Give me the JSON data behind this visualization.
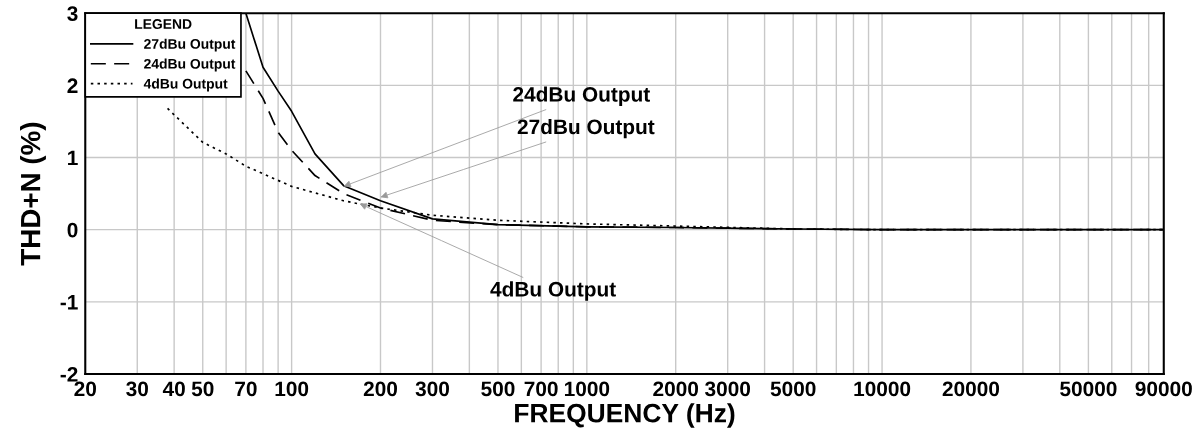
{
  "chart_data": {
    "type": "line",
    "xlabel": "FREQUENCY (Hz)",
    "ylabel": "THD+N (%)",
    "legend_title": "LEGEND",
    "log": "x",
    "grid": true,
    "legend": "top left",
    "marker": "none",
    "xlim": [
      20,
      90000
    ],
    "ylim": [
      -2,
      3
    ],
    "yticks": [
      -2,
      -1,
      0,
      1,
      2,
      3
    ],
    "xticks": [
      20,
      30,
      40,
      50,
      {
        "value": 60,
        "label": null
      },
      70,
      {
        "value": 80,
        "label": null
      },
      {
        "value": 90,
        "label": null
      },
      100,
      200,
      300,
      {
        "value": 400,
        "label": null
      },
      500,
      {
        "value": 600,
        "label": null
      },
      700,
      {
        "value": 800,
        "label": null
      },
      {
        "value": 900,
        "label": null
      },
      1000,
      2000,
      3000,
      {
        "value": 4000,
        "label": null
      },
      5000,
      {
        "value": 6000,
        "label": null
      },
      {
        "value": 7000,
        "label": null
      },
      {
        "value": 8000,
        "label": null
      },
      {
        "value": 9000,
        "label": null
      },
      10000,
      20000,
      {
        "value": 30000,
        "label": null
      },
      {
        "value": 40000,
        "label": null
      },
      50000,
      {
        "value": 60000,
        "label": null
      },
      {
        "value": 70000,
        "label": null
      },
      {
        "value": 80000,
        "label": null
      },
      90000
    ],
    "series": [
      {
        "name": "27dBu Output",
        "color": "#000000",
        "line_style": "solid",
        "x": [
          70,
          80,
          90,
          100,
          120,
          150,
          200,
          300,
          500,
          1000,
          2000,
          5000,
          10000,
          90000
        ],
        "values": [
          3.0,
          2.25,
          1.92,
          1.64,
          1.05,
          0.61,
          0.4,
          0.15,
          0.07,
          0.04,
          0.03,
          0.01,
          0.0,
          0.0
        ]
      },
      {
        "name": "24dBu Output",
        "color": "#000000",
        "line_style": "dashed",
        "x": [
          70,
          80,
          90,
          100,
          120,
          150,
          200,
          300,
          500,
          1000,
          2000,
          5000,
          10000,
          90000
        ],
        "values": [
          2.2,
          1.82,
          1.35,
          1.1,
          0.75,
          0.5,
          0.3,
          0.13,
          0.07,
          0.04,
          0.03,
          0.01,
          0.0,
          0.0
        ]
      },
      {
        "name": "4dBu Output",
        "color": "#000000",
        "line_style": "dotted",
        "x": [
          38,
          50,
          60,
          70,
          100,
          150,
          200,
          300,
          500,
          1000,
          2000,
          5000,
          10000,
          90000
        ],
        "values": [
          1.68,
          1.21,
          1.05,
          0.88,
          0.6,
          0.4,
          0.3,
          0.2,
          0.13,
          0.08,
          0.05,
          0.01,
          0.0,
          0.0
        ]
      }
    ],
    "annotations": [
      {
        "text": "24dBu Output",
        "x": 150,
        "y": 0.6
      },
      {
        "text": "27dBu Output",
        "x": 200,
        "y": 0.45
      },
      {
        "text": "4dBu Output",
        "x": 170,
        "y": 0.36
      }
    ]
  }
}
